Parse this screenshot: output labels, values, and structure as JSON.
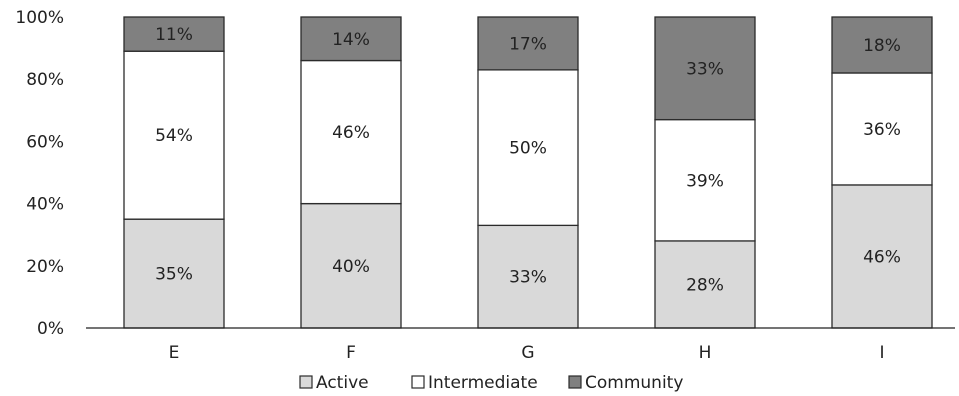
{
  "chart_data": {
    "type": "bar",
    "stacked": true,
    "percent": true,
    "categories": [
      "E",
      "F",
      "G",
      "H",
      "I"
    ],
    "series": [
      {
        "name": "Active",
        "values": [
          35,
          40,
          33,
          28,
          46
        ],
        "labels": [
          "35%",
          "40%",
          "33%",
          "28%",
          "46%"
        ],
        "color": "#d9d9d9"
      },
      {
        "name": "Intermediate",
        "values": [
          54,
          46,
          50,
          39,
          36
        ],
        "labels": [
          "54%",
          "46%",
          "50%",
          "39%",
          "36%"
        ],
        "color": "#ffffff"
      },
      {
        "name": "Community",
        "values": [
          11,
          14,
          17,
          33,
          18
        ],
        "labels": [
          "11%",
          "14%",
          "17%",
          "33%",
          "18%"
        ],
        "color": "#808080"
      }
    ],
    "ylim": [
      0,
      100
    ],
    "yticks": [
      "0%",
      "20%",
      "40%",
      "60%",
      "80%",
      "100%"
    ],
    "grid": false,
    "legend_position": "bottom",
    "title": "",
    "xlabel": "",
    "ylabel": ""
  }
}
